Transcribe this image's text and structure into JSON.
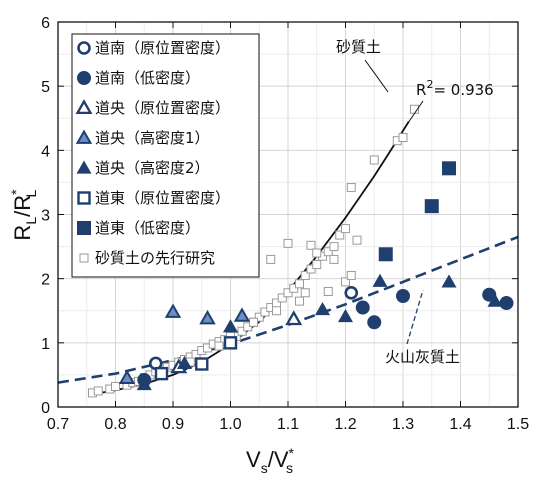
{
  "chart_data": {
    "type": "scatter",
    "title": "",
    "xlabel": {
      "main": "V",
      "sub1": "s",
      "mid": "/V",
      "sup": "*",
      "sub2": "s"
    },
    "ylabel": {
      "main": "R",
      "sub1": "L",
      "mid": "/R",
      "sup": "*",
      "sub2": "L"
    },
    "xlim": [
      0.7,
      1.5
    ],
    "ylim": [
      0,
      6
    ],
    "xticks": [
      "0.7",
      "0.8",
      "0.9",
      "1.0",
      "1.1",
      "1.2",
      "1.3",
      "1.4",
      "1.5"
    ],
    "yticks": [
      "0",
      "1",
      "2",
      "3",
      "4",
      "5",
      "6"
    ],
    "grid": true,
    "legend_position": "top-left",
    "colors": {
      "navy": "#1f3f6e",
      "steel": "#6b8fc4",
      "gray": "#9a9a9a",
      "black": "#111111"
    },
    "series": [
      {
        "name": "道南（原位置密度）",
        "marker": "circle-open",
        "x": [
          0.87,
          1.21
        ],
        "y": [
          0.68,
          1.78
        ]
      },
      {
        "name": "道南（低密度）",
        "marker": "circle-filled",
        "x": [
          0.85,
          1.23,
          1.25,
          1.3,
          1.45,
          1.48
        ],
        "y": [
          0.42,
          1.55,
          1.32,
          1.73,
          1.75,
          1.62
        ]
      },
      {
        "name": "道央（原位置密度）",
        "marker": "triangle-open",
        "x": [
          0.91,
          1.11
        ],
        "y": [
          0.62,
          1.37
        ]
      },
      {
        "name": "道央（高密度1）",
        "marker": "triangle-light",
        "x": [
          0.82,
          0.9,
          0.96,
          1.02
        ],
        "y": [
          0.45,
          1.48,
          1.38,
          1.42
        ]
      },
      {
        "name": "道央（高密度2）",
        "marker": "triangle-filled",
        "x": [
          0.85,
          0.92,
          1.0,
          1.16,
          1.2,
          1.26,
          1.38,
          1.46
        ],
        "y": [
          0.35,
          0.68,
          1.25,
          1.52,
          1.41,
          1.96,
          1.95,
          1.65
        ]
      },
      {
        "name": "道東（原位置密度）",
        "marker": "square-open",
        "x": [
          0.88,
          0.95,
          1.0
        ],
        "y": [
          0.52,
          0.67,
          1.0
        ]
      },
      {
        "name": "道東（低密度）",
        "marker": "square-filled",
        "x": [
          1.27,
          1.35,
          1.38
        ],
        "y": [
          2.38,
          3.13,
          3.72
        ]
      },
      {
        "name": "砂質土の先行研究",
        "marker": "square-small",
        "x": [
          0.76,
          0.77,
          0.79,
          0.8,
          0.82,
          0.83,
          0.84,
          0.85,
          0.86,
          0.87,
          0.88,
          0.89,
          0.9,
          0.91,
          0.92,
          0.93,
          0.94,
          0.95,
          0.96,
          0.97,
          0.98,
          0.99,
          1.01,
          1.02,
          1.03,
          1.04,
          1.05,
          1.06,
          1.07,
          1.08,
          1.09,
          1.1,
          1.11,
          1.12,
          1.13,
          1.14,
          1.15,
          1.16,
          1.17,
          1.18,
          1.19,
          1.2,
          1.21,
          1.22,
          1.25,
          1.29,
          1.3,
          1.32,
          0.98,
          1.04,
          1.08,
          1.12,
          1.17,
          1.2,
          1.14,
          1.07,
          1.0,
          0.93,
          1.13,
          1.18,
          1.21,
          1.1,
          1.15
        ],
        "y": [
          0.22,
          0.25,
          0.28,
          0.32,
          0.34,
          0.38,
          0.4,
          0.46,
          0.5,
          0.55,
          0.58,
          0.62,
          0.65,
          0.7,
          0.74,
          0.78,
          0.82,
          0.88,
          0.92,
          0.98,
          1.02,
          1.05,
          1.1,
          1.18,
          1.25,
          1.32,
          1.4,
          1.48,
          1.55,
          1.62,
          1.7,
          1.78,
          1.85,
          1.92,
          2.05,
          2.15,
          2.22,
          2.35,
          2.42,
          2.5,
          2.68,
          2.78,
          3.42,
          2.6,
          3.85,
          4.15,
          4.2,
          4.64,
          0.95,
          1.32,
          1.5,
          1.65,
          1.8,
          1.95,
          2.52,
          2.3,
          1.1,
          0.7,
          1.78,
          2.3,
          2.05,
          2.55,
          2.4
        ]
      }
    ],
    "fit_curves": [
      {
        "label": "砂質土",
        "style": "solid",
        "x": [
          0.76,
          0.8,
          0.85,
          0.9,
          0.95,
          1.0,
          1.05,
          1.1,
          1.15,
          1.2,
          1.25,
          1.28,
          1.31
        ],
        "y": [
          0.2,
          0.26,
          0.36,
          0.5,
          0.7,
          0.98,
          1.33,
          1.8,
          2.35,
          2.95,
          3.6,
          4.02,
          4.45
        ]
      },
      {
        "label": "火山灰質土",
        "style": "dashed",
        "x": [
          0.7,
          0.8,
          0.9,
          1.0,
          1.1,
          1.2,
          1.3,
          1.4,
          1.5
        ],
        "y": [
          0.38,
          0.52,
          0.73,
          0.98,
          1.28,
          1.6,
          1.95,
          2.3,
          2.65
        ]
      }
    ],
    "annotations": {
      "r2": "R",
      "r2_sup": "2",
      "r2_value": "= 0.936",
      "sand": "砂質土",
      "volcanic": "火山灰質土"
    }
  }
}
